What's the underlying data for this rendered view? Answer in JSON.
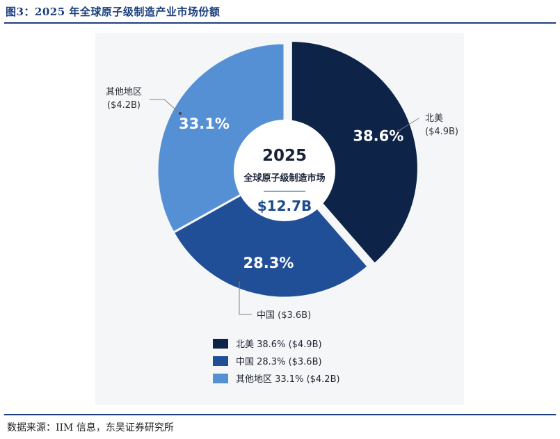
{
  "figure": {
    "title": "图3：2025 年全球原子级制造产业市场份额",
    "source": "数据来源：IIM 信息，东吴证券研究所"
  },
  "colors": {
    "north_america": "#0d2347",
    "china": "#214f97",
    "other": "#5590d5",
    "accent_text": "#1d4b8f",
    "frame_rule": "#1f3f7a"
  },
  "chart_data": {
    "type": "pie",
    "center_label": {
      "year": "2025",
      "subtitle": "全球原子级制造市场",
      "total": "$12.7B"
    },
    "slices": [
      {
        "name": "北美",
        "value": 38.6,
        "pct_label": "38.6%",
        "amount_label": "($4.9B)",
        "color": "#0d2347"
      },
      {
        "name": "中国",
        "value": 28.3,
        "pct_label": "28.3%",
        "amount_label": "($3.6B)",
        "color": "#214f97"
      },
      {
        "name": "其他地区",
        "value": 33.1,
        "pct_label": "33.1%",
        "amount_label": "($4.2B)",
        "color": "#5590d5"
      }
    ],
    "legend_position": "bottom"
  }
}
